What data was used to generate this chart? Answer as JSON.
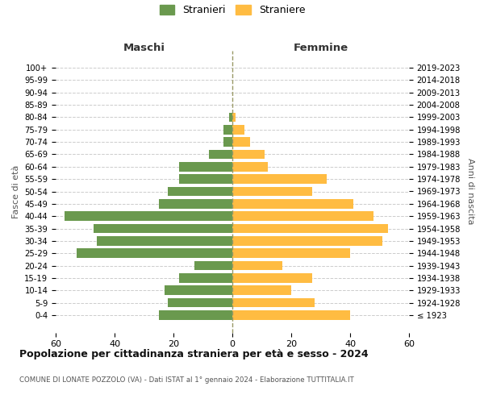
{
  "age_groups": [
    "100+",
    "95-99",
    "90-94",
    "85-89",
    "80-84",
    "75-79",
    "70-74",
    "65-69",
    "60-64",
    "55-59",
    "50-54",
    "45-49",
    "40-44",
    "35-39",
    "30-34",
    "25-29",
    "20-24",
    "15-19",
    "10-14",
    "5-9",
    "0-4"
  ],
  "birth_years": [
    "≤ 1923",
    "1924-1928",
    "1929-1933",
    "1934-1938",
    "1939-1943",
    "1944-1948",
    "1949-1953",
    "1954-1958",
    "1959-1963",
    "1964-1968",
    "1969-1973",
    "1974-1978",
    "1979-1983",
    "1984-1988",
    "1989-1993",
    "1994-1998",
    "1999-2003",
    "2004-2008",
    "2009-2013",
    "2014-2018",
    "2019-2023"
  ],
  "maschi": [
    0,
    0,
    0,
    0,
    1,
    3,
    3,
    8,
    18,
    18,
    22,
    25,
    57,
    47,
    46,
    53,
    13,
    18,
    23,
    22,
    25
  ],
  "femmine": [
    0,
    0,
    0,
    0,
    1,
    4,
    6,
    11,
    12,
    32,
    27,
    41,
    48,
    53,
    51,
    40,
    17,
    27,
    20,
    28,
    40
  ],
  "maschi_color": "#6a994e",
  "femmine_color": "#ffbc42",
  "background_color": "#ffffff",
  "grid_color": "#cccccc",
  "title": "Popolazione per cittadinanza straniera per età e sesso - 2024",
  "subtitle": "COMUNE DI LONATE POZZOLO (VA) - Dati ISTAT al 1° gennaio 2024 - Elaborazione TUTTITALIA.IT",
  "left_label": "Maschi",
  "right_label": "Femmine",
  "ylabel_left": "Fasce di età",
  "ylabel_right": "Anni di nascita",
  "xlim": 60,
  "legend_maschi": "Stranieri",
  "legend_femmine": "Straniere"
}
